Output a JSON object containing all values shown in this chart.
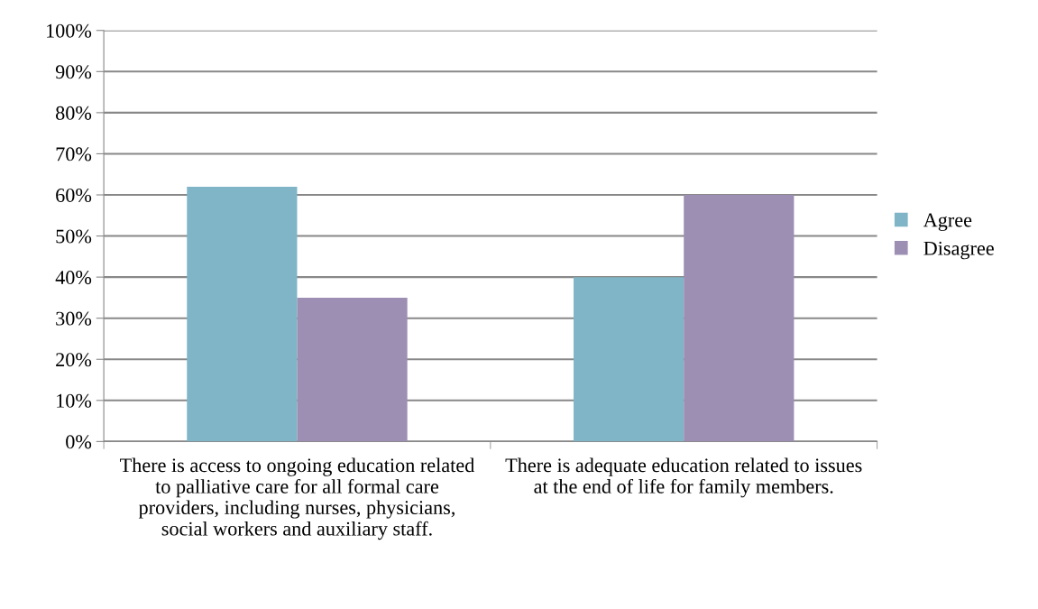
{
  "chart_data": {
    "type": "bar",
    "categories": [
      "There is access to ongoing education related to palliative care for all formal care providers, including nurses, physicians, social workers and auxiliary staff.",
      "There is adequate education related to issues at the end of life for family members."
    ],
    "series": [
      {
        "name": "Agree",
        "color": "#7fb5c6",
        "values": [
          62,
          40
        ]
      },
      {
        "name": "Disagree",
        "color": "#9d8fb3",
        "values": [
          35,
          60
        ]
      }
    ],
    "ylim": [
      0,
      100
    ],
    "yticks": [
      {
        "value": 0,
        "label": "0%"
      },
      {
        "value": 10,
        "label": "10%"
      },
      {
        "value": 20,
        "label": "20%"
      },
      {
        "value": 30,
        "label": "30%"
      },
      {
        "value": 40,
        "label": "40%"
      },
      {
        "value": 50,
        "label": "50%"
      },
      {
        "value": 60,
        "label": "60%"
      },
      {
        "value": 70,
        "label": "70%"
      },
      {
        "value": 80,
        "label": "80%"
      },
      {
        "value": 90,
        "label": "90%"
      },
      {
        "value": 100,
        "label": "100%"
      }
    ],
    "grid": "y",
    "legend": "right"
  }
}
